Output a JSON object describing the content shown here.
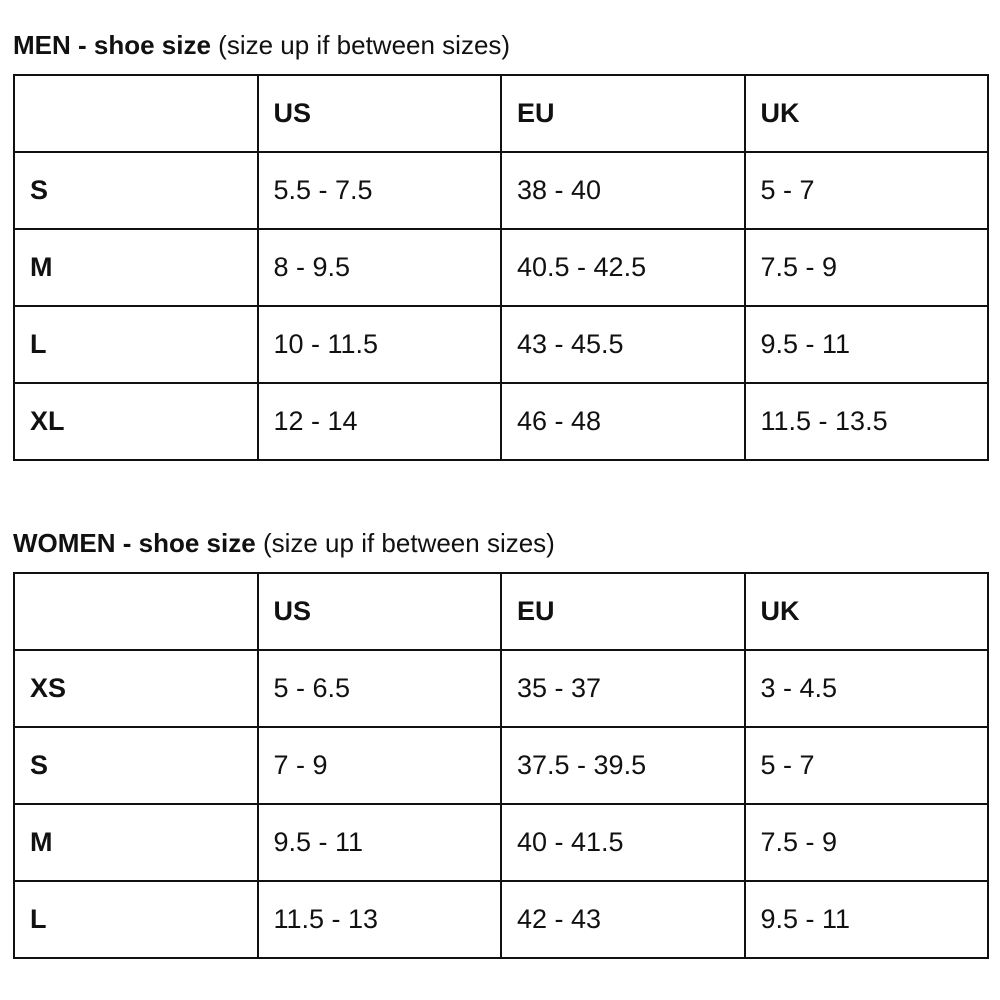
{
  "men": {
    "title_bold": "MEN - shoe size",
    "title_note": "(size up if between sizes)",
    "headers": [
      "",
      "US",
      "EU",
      "UK"
    ],
    "rows": [
      {
        "size": "S",
        "us": "5.5 - 7.5",
        "eu": "38 - 40",
        "uk": "5 - 7"
      },
      {
        "size": "M",
        "us": "8 - 9.5",
        "eu": "40.5 - 42.5",
        "uk": "7.5 - 9"
      },
      {
        "size": "L",
        "us": "10 - 11.5",
        "eu": "43 - 45.5",
        "uk": "9.5 - 11"
      },
      {
        "size": "XL",
        "us": "12 - 14",
        "eu": "46 - 48",
        "uk": "11.5 - 13.5"
      }
    ]
  },
  "women": {
    "title_bold": "WOMEN - shoe size",
    "title_note": "(size up if between sizes)",
    "headers": [
      "",
      "US",
      "EU",
      "UK"
    ],
    "rows": [
      {
        "size": "XS",
        "us": "5 - 6.5",
        "eu": "35 - 37",
        "uk": "3 - 4.5"
      },
      {
        "size": "S",
        "us": "7 - 9",
        "eu": "37.5 - 39.5",
        "uk": "5 - 7"
      },
      {
        "size": "M",
        "us": "9.5 - 11",
        "eu": "40 - 41.5",
        "uk": "7.5 - 9"
      },
      {
        "size": "L",
        "us": "11.5 - 13",
        "eu": "42 - 43",
        "uk": "9.5 - 11"
      }
    ]
  }
}
